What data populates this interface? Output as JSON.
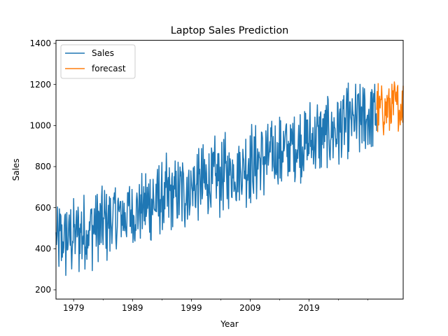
{
  "chart_data": {
    "type": "line",
    "title": "Laptop Sales Prediction",
    "xlabel": "Year",
    "ylabel": "Sales",
    "x_range": [
      1976,
      2035
    ],
    "ylim": [
      155,
      1415
    ],
    "x_ticks": [
      1979,
      1989,
      1999,
      2009,
      2019
    ],
    "x_tick_labels": [
      "1979",
      "1989",
      "1999",
      "2009",
      "2019"
    ],
    "x_minor_ticks": [
      1984,
      1994,
      2004,
      2014,
      2024,
      2029
    ],
    "y_ticks": [
      200,
      400,
      600,
      800,
      1000,
      1200,
      1400
    ],
    "y_tick_labels": [
      "200",
      "400",
      "600",
      "800",
      "1000",
      "1200",
      "1400"
    ],
    "grid": false,
    "legend_position": "top-left",
    "series": [
      {
        "name": "Sales",
        "color": "#1f77b4",
        "start_year": 1976,
        "end_year": 2030.5,
        "trend_start": 430,
        "trend_end": 1060,
        "amplitude": 190,
        "points_per_year": 12
      },
      {
        "name": "forecast",
        "color": "#ff7f0e",
        "start_year": 2030.5,
        "end_year": 2035,
        "trend_start": 1070,
        "trend_end": 1100,
        "amplitude": 140,
        "points_per_year": 12
      }
    ]
  }
}
